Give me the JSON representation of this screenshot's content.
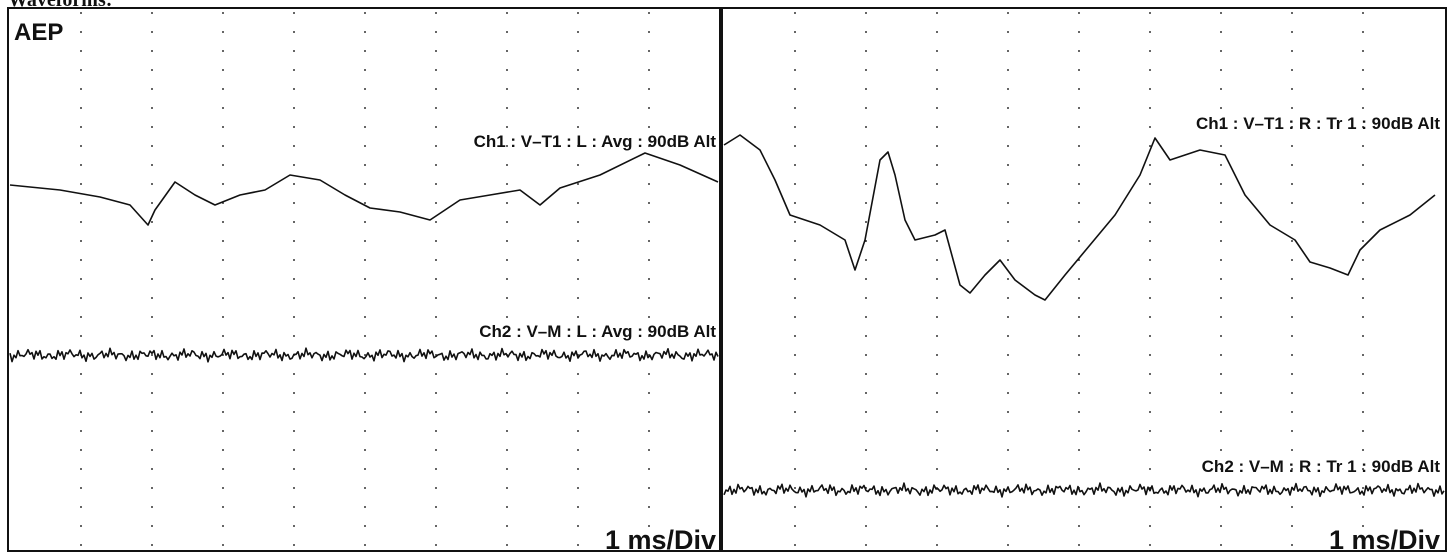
{
  "header": "Waveforms:",
  "panels": [
    {
      "title": "AEP",
      "ch1_label": "Ch1 : V–T1 : L : Avg : 90dB Alt",
      "ch2_label": "Ch2 : V–M : L : Avg : 90dB Alt",
      "scale": "1 ms/Div"
    },
    {
      "ch1_label": "Ch1 : V–T1 : R : Tr 1 : 90dB Alt",
      "ch2_label": "Ch2 : V–M : R : Tr 1 : 90dB Alt",
      "scale": "1 ms/Div"
    }
  ]
}
